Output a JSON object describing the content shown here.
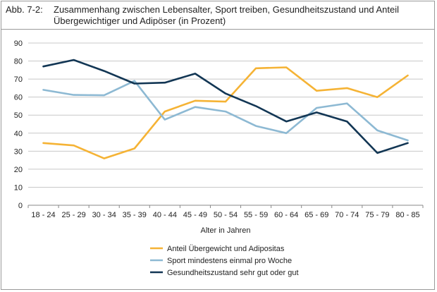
{
  "figure_label": "Abb. 7-2:",
  "title_line1": "Zusammenhang zwischen Lebensalter, Sport treiben, Gesundheitszustand und Anteil",
  "title_line2": "Übergewichtiger und Adipöser (in Prozent)",
  "chart_data": {
    "type": "line",
    "xlabel": "Alter in Jahren",
    "ylabel": "",
    "ylim": [
      0,
      90
    ],
    "yticks": [
      0,
      10,
      20,
      30,
      40,
      50,
      60,
      70,
      80,
      90
    ],
    "grid": true,
    "legend_position": "bottom",
    "categories": [
      "18 - 24",
      "25 - 29",
      "30 - 34",
      "35 - 39",
      "40 - 44",
      "45 - 49",
      "50 - 54",
      "55 - 59",
      "60 - 64",
      "65 - 69",
      "70 - 74",
      "75 - 79",
      "80 - 85"
    ],
    "series": [
      {
        "name": "Anteil Übergewicht und Adipositas",
        "color": "#f5b335",
        "values": [
          34.5,
          33.2,
          26,
          31.5,
          52,
          58,
          57.5,
          76,
          76.5,
          63.5,
          65,
          60,
          72
        ]
      },
      {
        "name": "Sport mindestens einmal pro Woche",
        "color": "#8db9d3",
        "values": [
          64,
          61.2,
          61,
          69,
          47.5,
          54.5,
          52,
          44,
          40,
          54,
          56.5,
          41.5,
          36
        ]
      },
      {
        "name": "Gesundheitszustand sehr gut oder gut",
        "color": "#123654",
        "values": [
          77,
          80.6,
          74.5,
          67.5,
          68,
          73,
          62,
          55,
          46.5,
          51.5,
          46.5,
          29,
          34.5
        ]
      }
    ]
  }
}
